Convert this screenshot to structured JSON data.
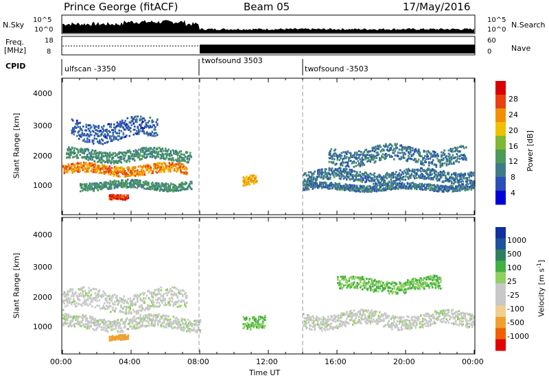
{
  "header": {
    "station": "Prince George (fitACF)",
    "beam": "Beam 05",
    "date": "17/May/2016"
  },
  "top_panels": {
    "nsky_label": "N.Sky",
    "nsky_ticks": [
      "10^5",
      "10^0"
    ],
    "nsearch_label": "N.Search",
    "nsearch_ticks": [
      "10^5",
      "10^0"
    ],
    "freq_label_line1": "Freq.",
    "freq_label_line2": "[MHz]",
    "freq_ticks": [
      "18",
      "8"
    ],
    "nave_label": "Nave",
    "nave_ticks": [
      "60",
      "0"
    ],
    "cpid_label": "CPID"
  },
  "cpid_segments": [
    {
      "name": "ulfscan -3350",
      "start_hour": 0
    },
    {
      "name": "twofsound 3503",
      "start_hour": 8
    },
    {
      "name": "twofsound -3503",
      "start_hour": 14
    }
  ],
  "power_panel": {
    "ylabel": "Slant Range [km]",
    "yticks": [
      "1000",
      "2000",
      "3000",
      "4000"
    ],
    "colorbar_label": "Power [dB]",
    "colorbar_ticks": [
      "28",
      "24",
      "20",
      "16",
      "12",
      "8",
      "4"
    ]
  },
  "velocity_panel": {
    "ylabel": "Slant Range [km]",
    "yticks": [
      "1000",
      "2000",
      "3000",
      "4000"
    ],
    "colorbar_label": "Velocity [m s",
    "colorbar_label_sup": "-1",
    "colorbar_label_end": "]",
    "colorbar_ticks": [
      "1000",
      "500",
      "100",
      "25",
      "-25",
      "-100",
      "-500",
      "-1000"
    ]
  },
  "xaxis": {
    "label": "Time UT",
    "ticks": [
      "00:00",
      "04:00",
      "08:00",
      "12:00",
      "16:00",
      "20:00",
      "00:00"
    ]
  },
  "colors": {
    "power_scale": [
      "#0000d8",
      "#2a4fb8",
      "#3f7a8a",
      "#4b9a5a",
      "#7fb832",
      "#f0c000",
      "#f09000",
      "#e84010",
      "#d80000"
    ],
    "velocity_scale": [
      "#e00000",
      "#f06000",
      "#f0a030",
      "#f0d090",
      "#c8c8c8",
      "#c8c8c8",
      "#90d060",
      "#40b040",
      "#308060",
      "#2050a0",
      "#1030a0"
    ]
  },
  "chart_data": [
    {
      "type": "heatmap",
      "title": "",
      "xlabel": "Time UT",
      "ylabel": "Slant Range [km]",
      "xlim": [
        "00:00",
        "24:00"
      ],
      "ylim": [
        200,
        4500
      ],
      "colorbar": {
        "label": "Power [dB]",
        "range": [
          0,
          30
        ]
      },
      "bands": [
        {
          "t_start": 0.0,
          "t_end": 7.2,
          "r_center": 1650,
          "r_width": 300,
          "power": 22
        },
        {
          "t_start": 0.2,
          "t_end": 7.5,
          "r_center": 2100,
          "r_width": 350,
          "power": 10
        },
        {
          "t_start": 0.5,
          "t_end": 5.5,
          "r_center": 2900,
          "r_width": 600,
          "power": 6
        },
        {
          "t_start": 1.0,
          "t_end": 7.5,
          "r_center": 1150,
          "r_width": 250,
          "power": 10
        },
        {
          "t_start": 2.7,
          "t_end": 3.8,
          "r_center": 750,
          "r_width": 150,
          "power": 26
        },
        {
          "t_start": 10.5,
          "t_end": 11.3,
          "r_center": 1300,
          "r_width": 300,
          "power": 20
        },
        {
          "t_start": 14.0,
          "t_end": 24.0,
          "r_center": 1450,
          "r_width": 350,
          "power": 8
        },
        {
          "t_start": 14.0,
          "t_end": 24.0,
          "r_center": 1100,
          "r_width": 200,
          "power": 8
        },
        {
          "t_start": 15.5,
          "t_end": 23.5,
          "r_center": 2100,
          "r_width": 500,
          "power": 8
        }
      ]
    },
    {
      "type": "heatmap",
      "title": "",
      "xlabel": "Time UT",
      "ylabel": "Slant Range [km]",
      "xlim": [
        "00:00",
        "24:00"
      ],
      "ylim": [
        200,
        4500
      ],
      "colorbar": {
        "label": "Velocity [m s-1]",
        "range": [
          -1000,
          1000
        ]
      },
      "bands": [
        {
          "t_start": 0.0,
          "t_end": 7.2,
          "r_center": 1900,
          "r_width": 600,
          "velocity": 0
        },
        {
          "t_start": 0.0,
          "t_end": 8.0,
          "r_center": 1200,
          "r_width": 400,
          "velocity": 0
        },
        {
          "t_start": 2.7,
          "t_end": 3.8,
          "r_center": 750,
          "r_width": 150,
          "velocity": -300
        },
        {
          "t_start": 10.5,
          "t_end": 11.8,
          "r_center": 1300,
          "r_width": 400,
          "velocity": 100
        },
        {
          "t_start": 14.0,
          "t_end": 24.0,
          "r_center": 1300,
          "r_width": 450,
          "velocity": 0
        },
        {
          "t_start": 16.0,
          "t_end": 22.0,
          "r_center": 2400,
          "r_width": 400,
          "velocity": 100
        }
      ]
    }
  ]
}
